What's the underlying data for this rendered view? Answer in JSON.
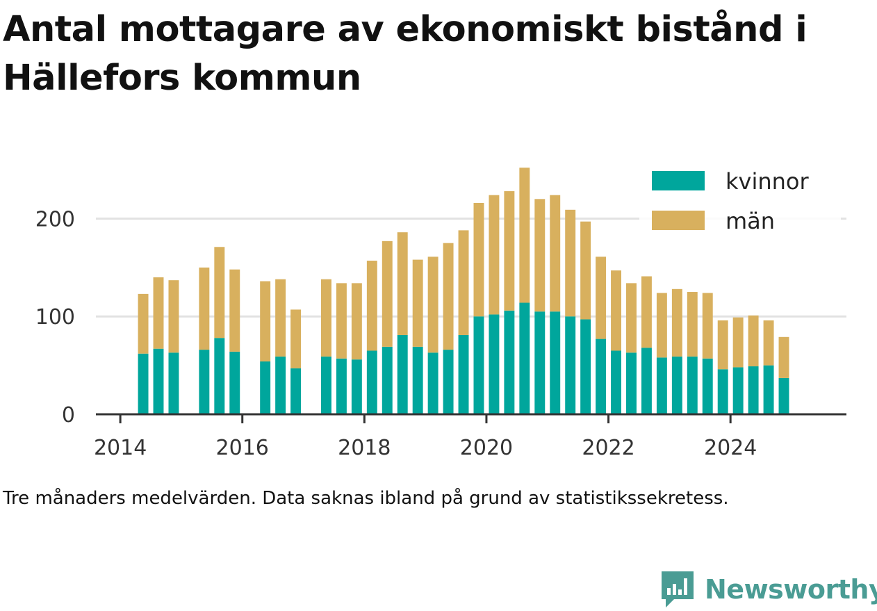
{
  "chart_data": {
    "type": "bar",
    "stacked": true,
    "title": "Antal mottagare av ekonomiskt bistånd i Hällefors kommun",
    "footnote": "Tre månaders medelvärden. Data saknas ibland på grund av statistikssekretess.",
    "brand": "Newsworthy",
    "xlabel": "",
    "ylabel": "",
    "xlim": [
      2013.6,
      2025.9
    ],
    "ylim": [
      0,
      260
    ],
    "x_ticks": [
      2014,
      2016,
      2018,
      2020,
      2022,
      2024
    ],
    "x_tick_labels": [
      "2014",
      "2016",
      "2018",
      "2020",
      "2022",
      "2024"
    ],
    "y_ticks": [
      0,
      100,
      200
    ],
    "y_tick_labels": [
      "0",
      "100",
      "200"
    ],
    "grid": true,
    "legend_position": "top-right",
    "x": [
      2014.375,
      2014.625,
      2014.875,
      2015.375,
      2015.625,
      2015.875,
      2016.375,
      2016.625,
      2016.875,
      2017.375,
      2017.625,
      2017.875,
      2018.125,
      2018.375,
      2018.625,
      2018.875,
      2019.125,
      2019.375,
      2019.625,
      2019.875,
      2020.125,
      2020.375,
      2020.625,
      2020.875,
      2021.125,
      2021.375,
      2021.625,
      2021.875,
      2022.125,
      2022.375,
      2022.625,
      2022.875,
      2023.125,
      2023.375,
      2023.625,
      2023.875,
      2024.125,
      2024.375,
      2024.625,
      2024.875
    ],
    "series": [
      {
        "name": "kvinnor",
        "color": "#00a69c",
        "values": [
          62,
          67,
          63,
          66,
          78,
          64,
          54,
          59,
          47,
          59,
          57,
          56,
          65,
          69,
          81,
          69,
          63,
          66,
          81,
          100,
          102,
          106,
          114,
          105,
          105,
          100,
          97,
          77,
          65,
          63,
          68,
          58,
          59,
          59,
          57,
          46,
          48,
          49,
          50,
          37
        ]
      },
      {
        "name": "män",
        "color": "#d8b05e",
        "values": [
          61,
          73,
          74,
          84,
          93,
          84,
          82,
          79,
          60,
          79,
          77,
          78,
          92,
          108,
          105,
          89,
          98,
          109,
          107,
          116,
          122,
          122,
          138,
          115,
          119,
          109,
          100,
          84,
          82,
          71,
          73,
          66,
          69,
          66,
          67,
          50,
          51,
          52,
          46,
          42
        ]
      }
    ]
  }
}
